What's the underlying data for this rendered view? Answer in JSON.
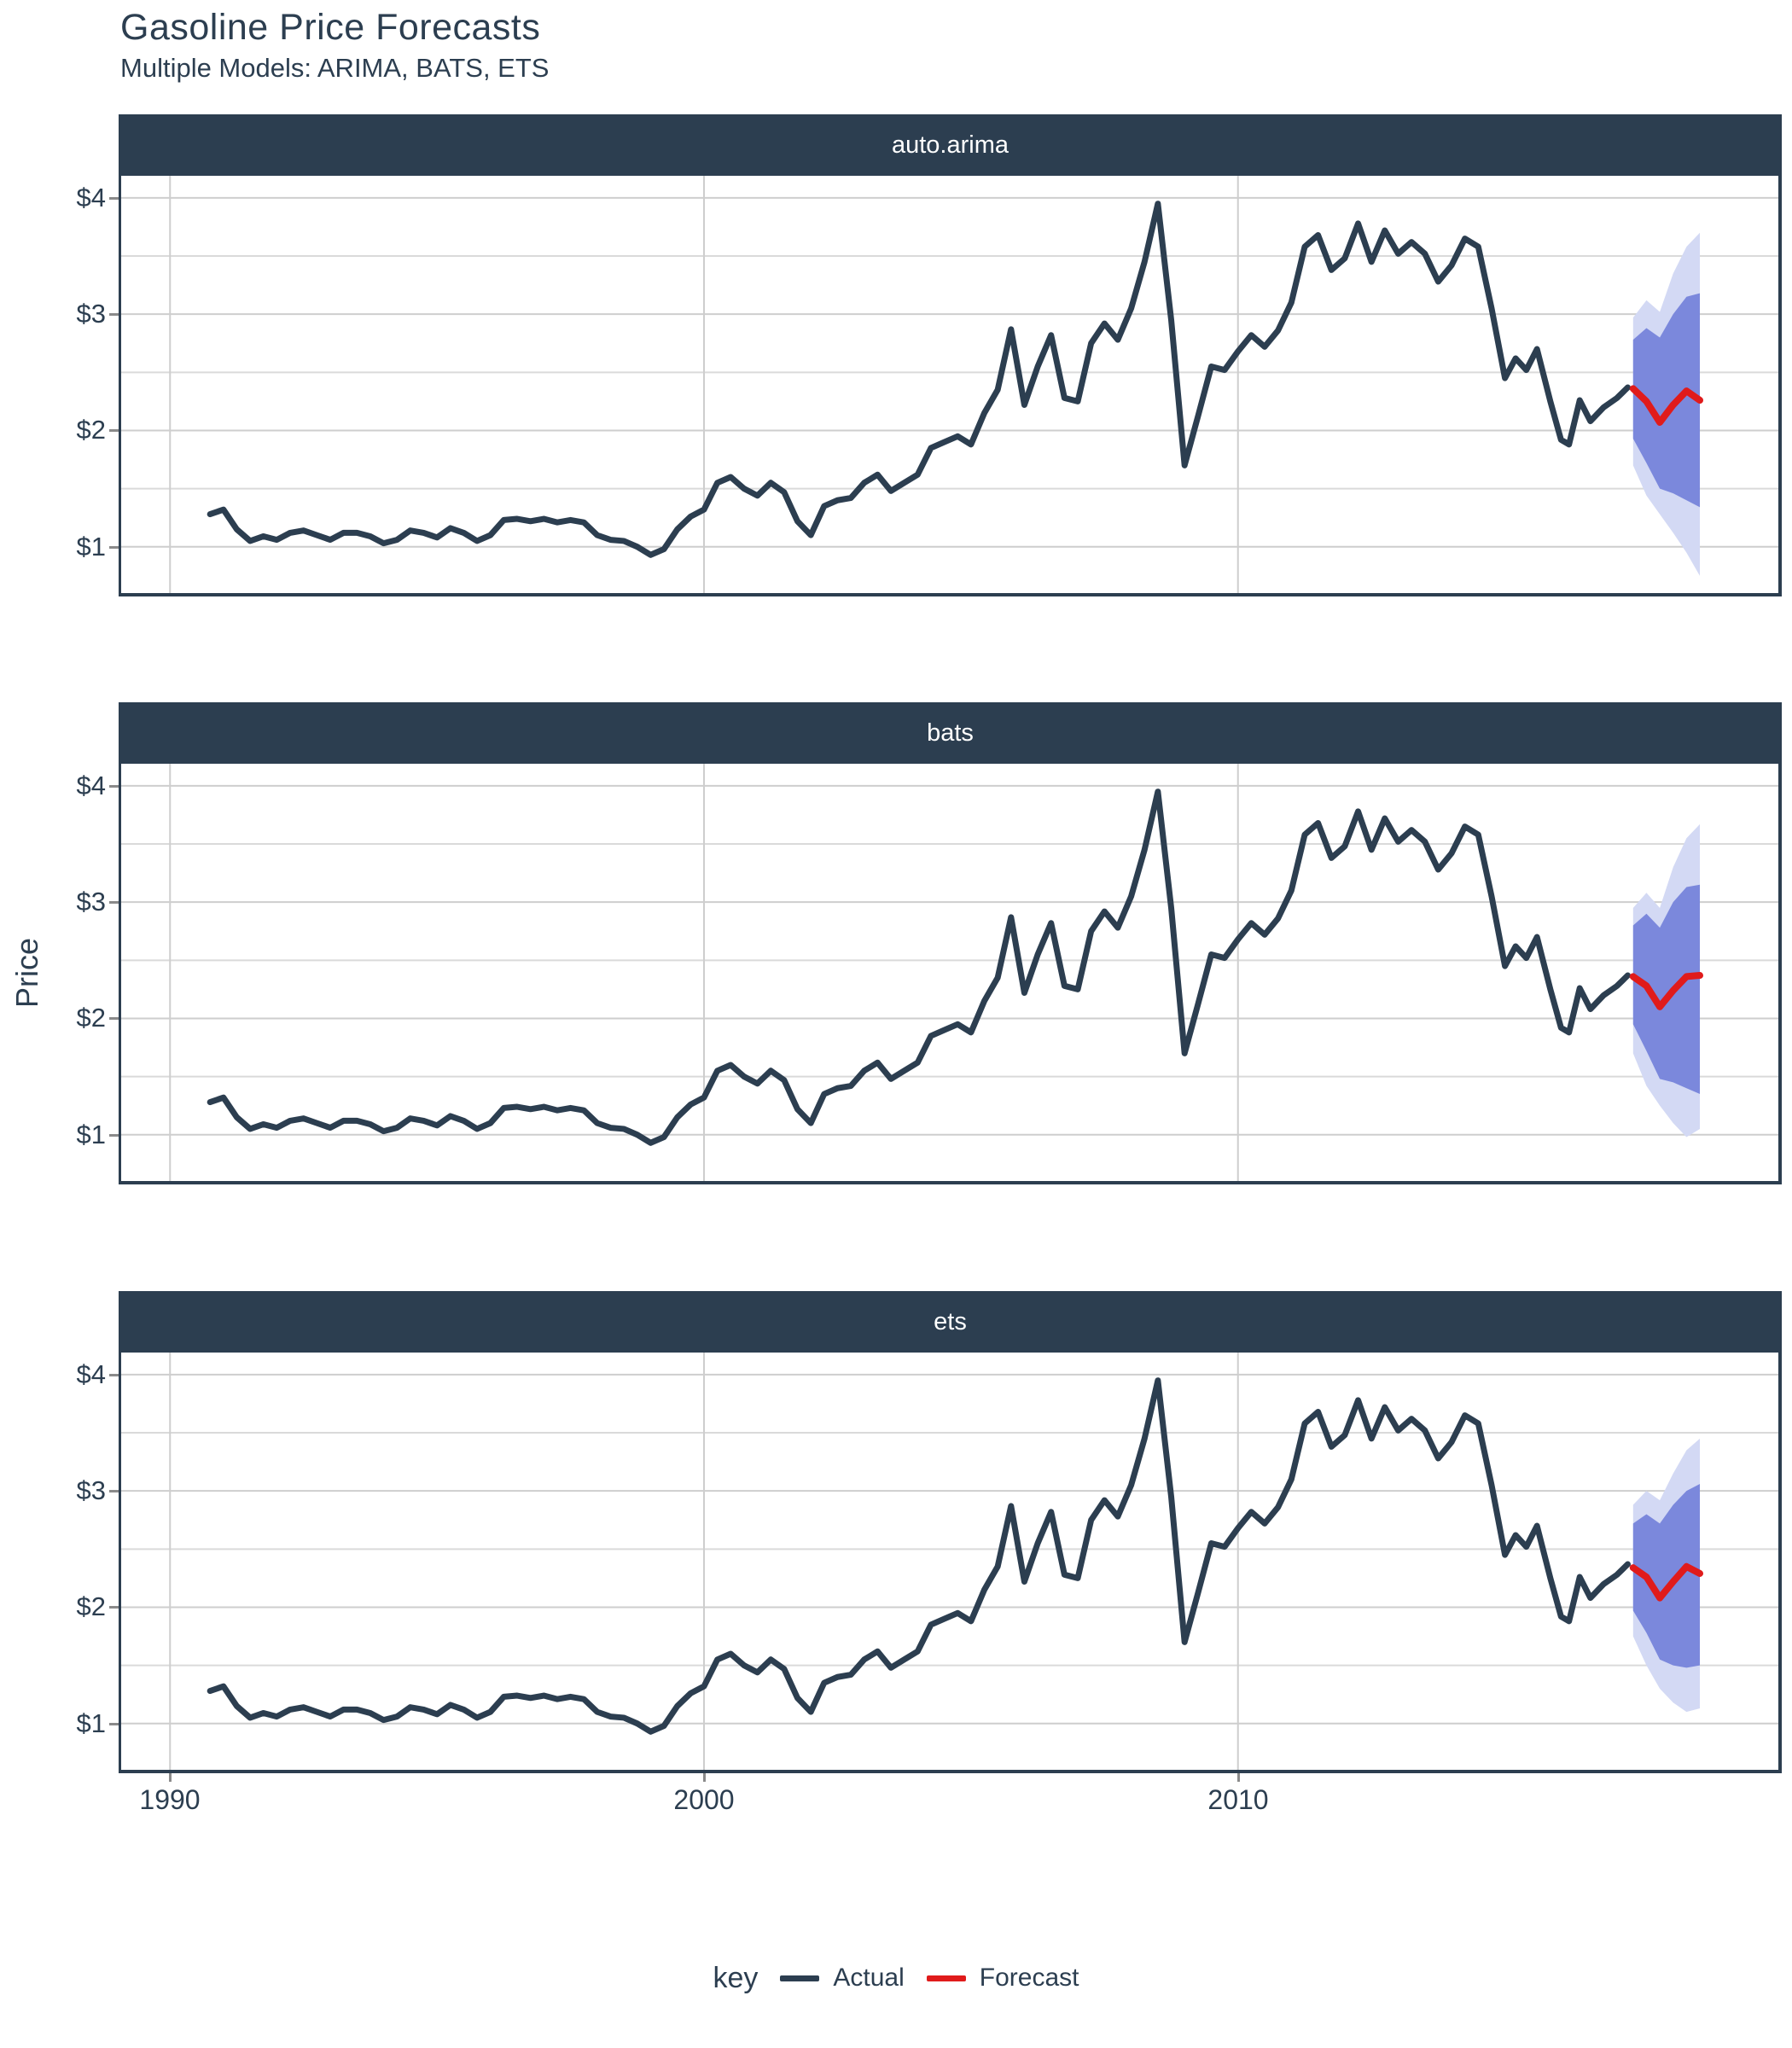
{
  "title": "Gasoline Price Forecasts",
  "subtitle": "Multiple Models: ARIMA, BATS, ETS",
  "panels": [
    {
      "label": "auto.arima"
    },
    {
      "label": "bats"
    },
    {
      "label": "ets"
    }
  ],
  "y_axis": {
    "label": "Price",
    "ticks": [
      {
        "label": "$4",
        "value": 4
      },
      {
        "label": "$3",
        "value": 3
      },
      {
        "label": "$2",
        "value": 2
      },
      {
        "label": "$1",
        "value": 1
      }
    ]
  },
  "x_axis": {
    "ticks": [
      {
        "label": "1990",
        "value": 1990
      },
      {
        "label": "2000",
        "value": 2000
      },
      {
        "label": "2010",
        "value": 2010
      }
    ]
  },
  "legend": {
    "title": "key",
    "items": [
      {
        "label": "Actual",
        "color": "#2c3e50"
      },
      {
        "label": "Forecast",
        "color": "#e01b1b"
      }
    ]
  },
  "colors": {
    "accent_navy": "#2c3e50",
    "forecast_red": "#e01b1b",
    "band_80": "#7b88dc",
    "band_95": "#d3d9f4",
    "grid_major": "#cecece",
    "grid_minor": "#dadada",
    "strip_text": "#ffffff"
  },
  "chart_data": {
    "type": "line",
    "title": "Gasoline Price Forecasts",
    "subtitle": "Multiple Models: ARIMA, BATS, ETS",
    "facets": [
      "auto.arima",
      "bats",
      "ets"
    ],
    "xlabel": "",
    "ylabel": "Price",
    "x_domain": [
      1989.085,
      2020.12
    ],
    "y_domain": [
      0.602,
      4.19
    ],
    "grid": {
      "y_major": [
        1,
        2,
        3,
        4
      ],
      "y_minor": [
        1.5,
        2.5,
        3.5
      ],
      "x_major": [
        1990,
        2000,
        2010
      ],
      "major_color": "#cecece",
      "minor_color": "#dadada"
    },
    "band_colors": {
      "level80": "#7b88dc",
      "level95": "#d3d9f4"
    },
    "actual": {
      "name": "Actual",
      "color": "#2c3e50",
      "points": [
        [
          1990.75,
          1.28
        ],
        [
          1991,
          1.32
        ],
        [
          1991.25,
          1.15
        ],
        [
          1991.5,
          1.05
        ],
        [
          1991.75,
          1.09
        ],
        [
          1992,
          1.06
        ],
        [
          1992.25,
          1.12
        ],
        [
          1992.5,
          1.14
        ],
        [
          1992.75,
          1.1
        ],
        [
          1993,
          1.06
        ],
        [
          1993.25,
          1.12
        ],
        [
          1993.5,
          1.12
        ],
        [
          1993.75,
          1.09
        ],
        [
          1994,
          1.03
        ],
        [
          1994.25,
          1.06
        ],
        [
          1994.5,
          1.14
        ],
        [
          1994.75,
          1.12
        ],
        [
          1995,
          1.08
        ],
        [
          1995.25,
          1.16
        ],
        [
          1995.5,
          1.12
        ],
        [
          1995.75,
          1.05
        ],
        [
          1996,
          1.1
        ],
        [
          1996.25,
          1.23
        ],
        [
          1996.5,
          1.24
        ],
        [
          1996.75,
          1.22
        ],
        [
          1997,
          1.24
        ],
        [
          1997.25,
          1.21
        ],
        [
          1997.5,
          1.23
        ],
        [
          1997.75,
          1.21
        ],
        [
          1998,
          1.1
        ],
        [
          1998.25,
          1.06
        ],
        [
          1998.5,
          1.05
        ],
        [
          1998.75,
          1
        ],
        [
          1999,
          0.93
        ],
        [
          1999.25,
          0.98
        ],
        [
          1999.5,
          1.15
        ],
        [
          1999.75,
          1.26
        ],
        [
          2000,
          1.32
        ],
        [
          2000.25,
          1.55
        ],
        [
          2000.5,
          1.6
        ],
        [
          2000.75,
          1.5
        ],
        [
          2001,
          1.44
        ],
        [
          2001.25,
          1.55
        ],
        [
          2001.5,
          1.47
        ],
        [
          2001.75,
          1.22
        ],
        [
          2002,
          1.1
        ],
        [
          2002.25,
          1.35
        ],
        [
          2002.5,
          1.4
        ],
        [
          2002.75,
          1.42
        ],
        [
          2003,
          1.55
        ],
        [
          2003.25,
          1.62
        ],
        [
          2003.5,
          1.48
        ],
        [
          2003.75,
          1.55
        ],
        [
          2004,
          1.62
        ],
        [
          2004.25,
          1.85
        ],
        [
          2004.5,
          1.9
        ],
        [
          2004.75,
          1.95
        ],
        [
          2005,
          1.88
        ],
        [
          2005.25,
          2.15
        ],
        [
          2005.5,
          2.35
        ],
        [
          2005.75,
          2.87
        ],
        [
          2006,
          2.22
        ],
        [
          2006.25,
          2.55
        ],
        [
          2006.5,
          2.82
        ],
        [
          2006.75,
          2.28
        ],
        [
          2007,
          2.25
        ],
        [
          2007.25,
          2.75
        ],
        [
          2007.5,
          2.92
        ],
        [
          2007.75,
          2.78
        ],
        [
          2008,
          3.05
        ],
        [
          2008.25,
          3.45
        ],
        [
          2008.5,
          3.95
        ],
        [
          2008.75,
          2.95
        ],
        [
          2009,
          1.7
        ],
        [
          2009.25,
          2.12
        ],
        [
          2009.5,
          2.55
        ],
        [
          2009.75,
          2.52
        ],
        [
          2010,
          2.68
        ],
        [
          2010.25,
          2.82
        ],
        [
          2010.5,
          2.72
        ],
        [
          2010.75,
          2.86
        ],
        [
          2011,
          3.1
        ],
        [
          2011.25,
          3.58
        ],
        [
          2011.5,
          3.68
        ],
        [
          2011.75,
          3.38
        ],
        [
          2012,
          3.48
        ],
        [
          2012.25,
          3.78
        ],
        [
          2012.5,
          3.45
        ],
        [
          2012.75,
          3.72
        ],
        [
          2013,
          3.52
        ],
        [
          2013.25,
          3.62
        ],
        [
          2013.5,
          3.52
        ],
        [
          2013.75,
          3.28
        ],
        [
          2014,
          3.42
        ],
        [
          2014.25,
          3.65
        ],
        [
          2014.5,
          3.58
        ],
        [
          2014.75,
          3.05
        ],
        [
          2015,
          2.45
        ],
        [
          2015.2,
          2.62
        ],
        [
          2015.4,
          2.52
        ],
        [
          2015.6,
          2.7
        ],
        [
          2015.85,
          2.25
        ],
        [
          2016.05,
          1.92
        ],
        [
          2016.2,
          1.88
        ],
        [
          2016.4,
          2.26
        ],
        [
          2016.6,
          2.08
        ],
        [
          2016.85,
          2.2
        ],
        [
          2017.1,
          2.28
        ],
        [
          2017.3,
          2.37
        ]
      ]
    },
    "forecasts": {
      "auto.arima": {
        "name": "Forecast",
        "color": "#e01b1b",
        "t": [
          2017.4,
          2017.65,
          2017.9,
          2018.15,
          2018.4,
          2018.65
        ],
        "mean": [
          2.36,
          2.25,
          2.07,
          2.22,
          2.34,
          2.26
        ],
        "hi80": [
          2.78,
          2.88,
          2.8,
          3.0,
          3.15,
          3.18
        ],
        "lo80": [
          1.93,
          1.72,
          1.5,
          1.46,
          1.4,
          1.34
        ],
        "hi95": [
          2.97,
          3.12,
          3.02,
          3.35,
          3.58,
          3.7
        ],
        "lo95": [
          1.7,
          1.44,
          1.28,
          1.12,
          0.95,
          0.75
        ]
      },
      "bats": {
        "name": "Forecast",
        "color": "#e01b1b",
        "t": [
          2017.4,
          2017.65,
          2017.9,
          2018.15,
          2018.4,
          2018.65
        ],
        "mean": [
          2.36,
          2.28,
          2.1,
          2.24,
          2.36,
          2.37
        ],
        "hi80": [
          2.8,
          2.9,
          2.78,
          3.0,
          3.13,
          3.15
        ],
        "lo80": [
          1.95,
          1.72,
          1.48,
          1.45,
          1.4,
          1.35
        ],
        "hi95": [
          2.95,
          3.08,
          2.95,
          3.3,
          3.55,
          3.67
        ],
        "lo95": [
          1.7,
          1.42,
          1.25,
          1.1,
          0.98,
          1.05
        ]
      },
      "ets": {
        "name": "Forecast",
        "color": "#e01b1b",
        "t": [
          2017.4,
          2017.65,
          2017.9,
          2018.15,
          2018.4,
          2018.65
        ],
        "mean": [
          2.34,
          2.26,
          2.08,
          2.22,
          2.35,
          2.29
        ],
        "hi80": [
          2.72,
          2.8,
          2.72,
          2.88,
          3.0,
          3.06
        ],
        "lo80": [
          1.97,
          1.78,
          1.55,
          1.5,
          1.48,
          1.5
        ],
        "hi95": [
          2.88,
          3.0,
          2.92,
          3.15,
          3.35,
          3.45
        ],
        "lo95": [
          1.75,
          1.5,
          1.3,
          1.18,
          1.1,
          1.13
        ]
      }
    }
  }
}
